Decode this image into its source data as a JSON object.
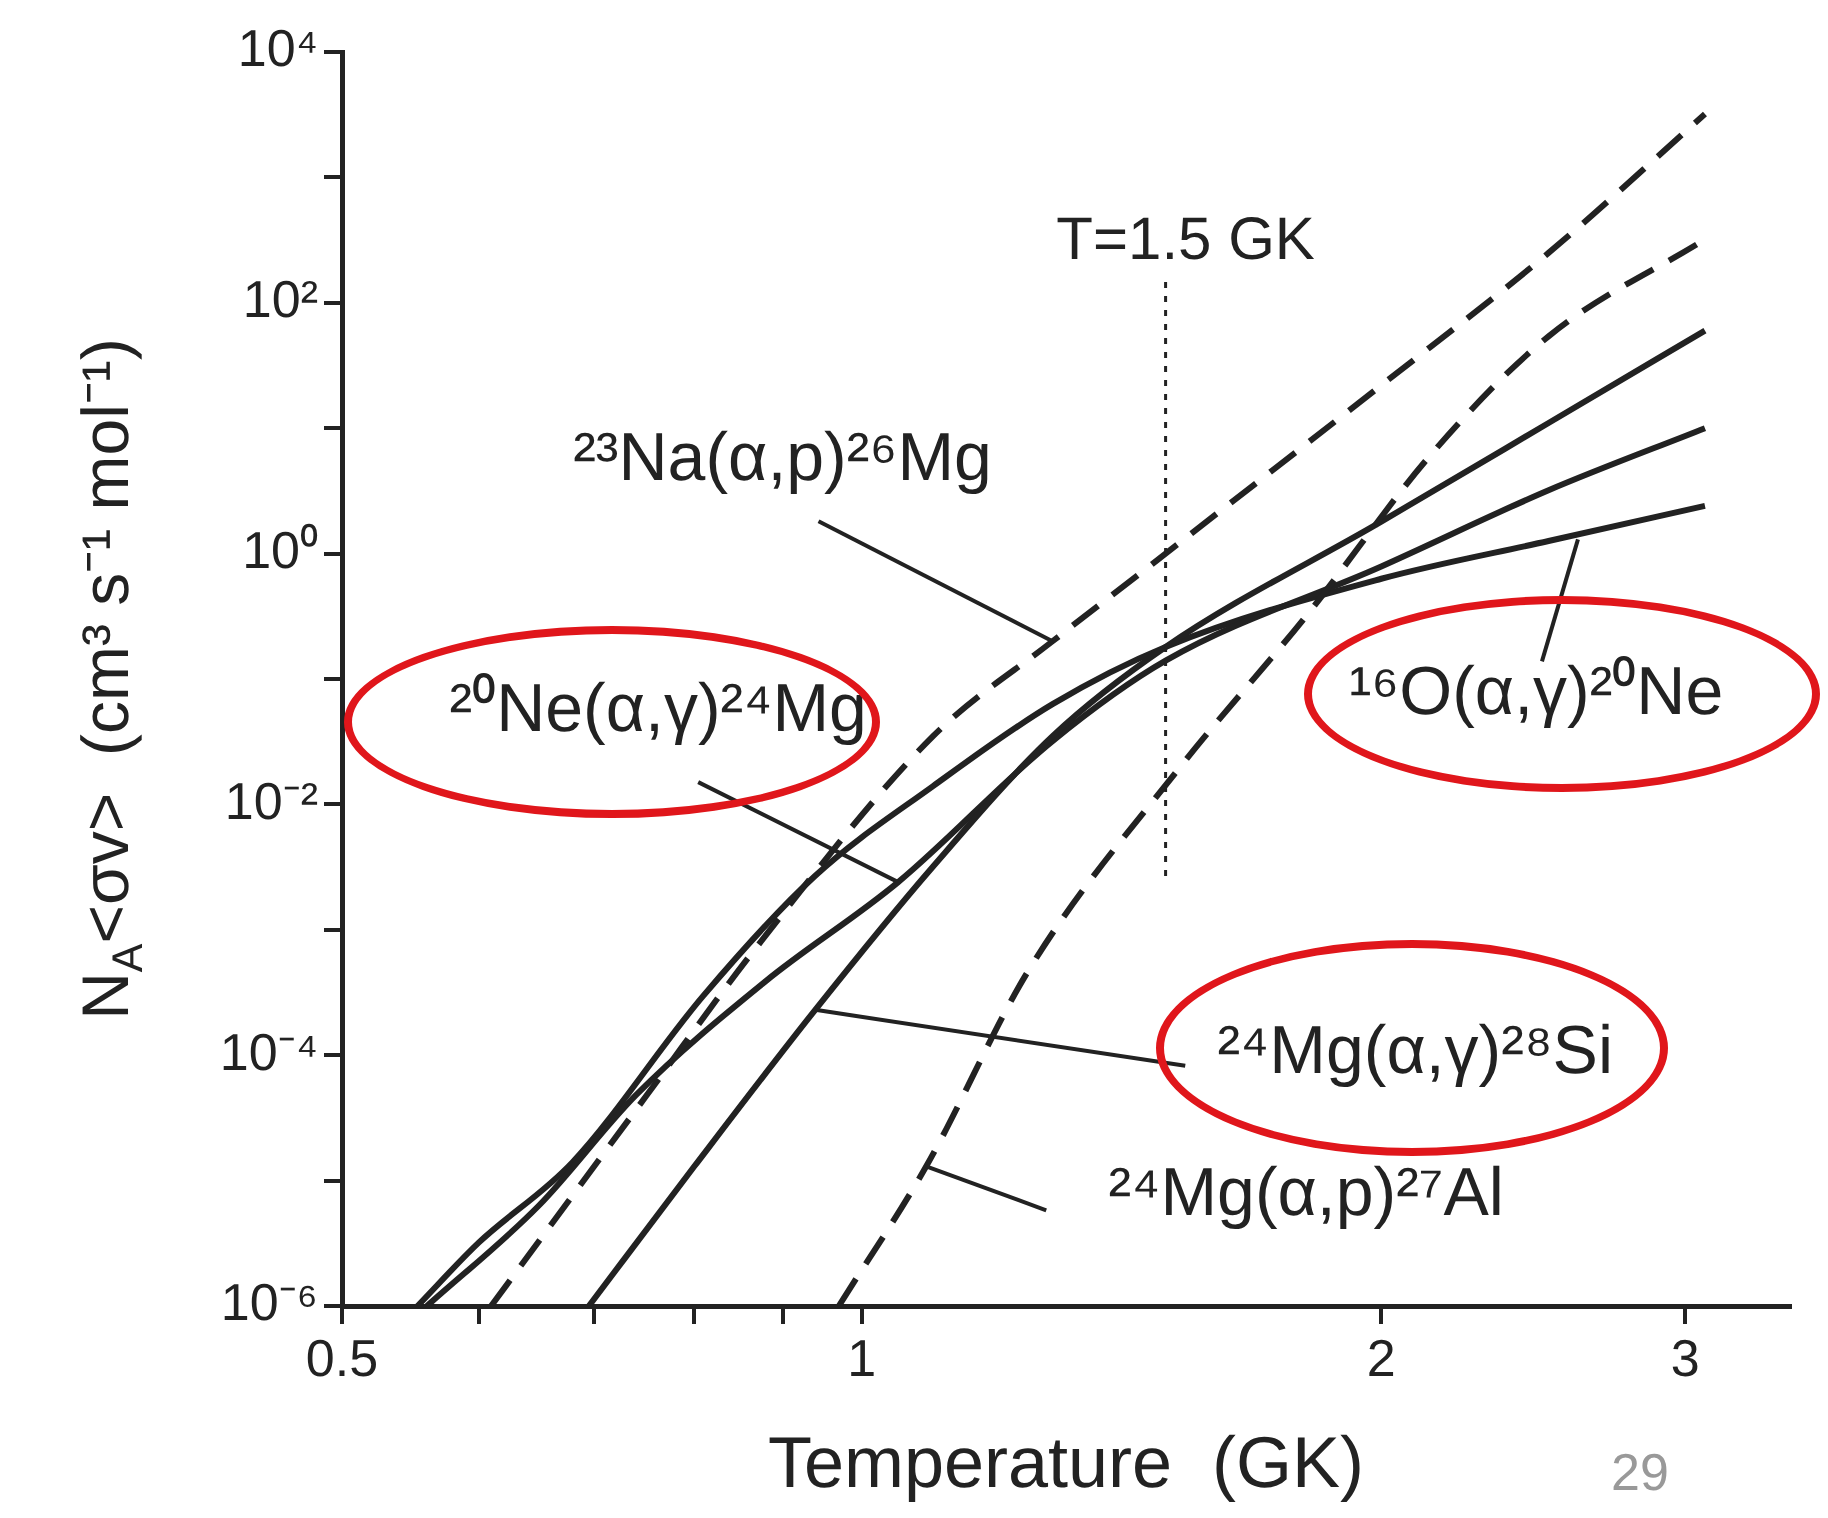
{
  "chart_data": {
    "type": "line",
    "xlabel": "Temperature  (GK)",
    "ylabel": "N$_{A}$<σv>  (cm³ s⁻¹ mol⁻¹)",
    "log": "xy",
    "grid": false,
    "legend": false,
    "marker": "none",
    "xlim": [
      0.5,
      3.45
    ],
    "ylim": [
      1e-06,
      10000
    ],
    "xticks": [
      0.5,
      {
        "value": 0.6,
        "label": null
      },
      {
        "value": 0.7,
        "label": null
      },
      {
        "value": 0.8,
        "label": null
      },
      {
        "value": 0.9,
        "label": null
      },
      1,
      2,
      3
    ],
    "yticks": [
      {
        "value": 1e-06,
        "label": "10⁻⁶"
      },
      {
        "value": 1e-05,
        "label": null
      },
      {
        "value": 0.0001,
        "label": "10⁻⁴"
      },
      {
        "value": 0.001,
        "label": null
      },
      {
        "value": 0.01,
        "label": "10⁻²"
      },
      {
        "value": 0.1,
        "label": null
      },
      {
        "value": 1,
        "label": "10⁰"
      },
      {
        "value": 10,
        "label": null
      },
      {
        "value": 100,
        "label": "10²"
      },
      {
        "value": 1000,
        "label": null
      },
      {
        "value": 10000,
        "label": "10⁴"
      }
    ],
    "series": [
      {
        "color": "#222222",
        "line_style": "dashed",
        "x": [
          0.61,
          0.75,
          0.87,
          1.1,
          1.29,
          1.5,
          2,
          2.5,
          3.08
        ],
        "values": [
          1e-06,
          4.7e-05,
          0.00074,
          0.035,
          0.2,
          1,
          22,
          250,
          3200
        ]
      },
      {
        "color": "#222222",
        "line_style": "dashed",
        "x": [
          0.97,
          1.09,
          1.25,
          1.53,
          1.81,
          2.14,
          2.5,
          3.08
        ],
        "values": [
          1e-06,
          1.3e-05,
          0.00048,
          0.02,
          0.32,
          6.3,
          54,
          320
        ]
      },
      {
        "color": "#222222",
        "line_style": "solid",
        "x": [
          0.695,
          0.8,
          0.94,
          1.1,
          1.29,
          1.5,
          2,
          2.5,
          3.08
        ],
        "values": [
          1e-06,
          1.3e-05,
          0.00023,
          0.0032,
          0.035,
          0.18,
          1.8,
          11,
          60
        ]
      },
      {
        "color": "#222222",
        "line_style": "solid",
        "x": [
          0.56,
          0.65,
          0.74,
          0.88,
          1.05,
          1.29,
          1.5,
          2,
          2.5,
          3.08
        ],
        "values": [
          1e-06,
          6.3e-06,
          4.8e-05,
          0.00039,
          0.0024,
          0.032,
          0.14,
          0.79,
          3.2,
          10
        ]
      },
      {
        "color": "#222222",
        "line_style": "solid",
        "x": [
          0.553,
          0.6,
          0.68,
          0.81,
          0.94,
          1.1,
          1.29,
          1.5,
          2,
          2.5,
          3.08
        ],
        "values": [
          1e-06,
          3.2e-06,
          1.4e-05,
          0.0003,
          0.0027,
          0.014,
          0.063,
          0.18,
          0.63,
          1.26,
          2.4
        ]
      }
    ],
    "ref_lines": [
      {
        "axis": "x",
        "value": 1.5,
        "label": "T=1.5 GK",
        "line_style": "dotted"
      }
    ],
    "annotations": [
      {
        "text": "²³Na(α,p)²⁶Mg",
        "x": 1.29,
        "y": 0.2
      },
      {
        "text": "²⁰Ne(α,γ)²⁴Mg",
        "x": 1.05,
        "y": 0.0024
      },
      {
        "text": "¹⁶O(α,γ)²⁰Ne",
        "x": 2.6,
        "y": 1.3
      },
      {
        "text": "²⁴Mg(α,γ)²⁸Si",
        "x": 0.94,
        "y": 0.00023
      },
      {
        "text": "²⁴Mg(α,p)²⁷Al",
        "x": 1.09,
        "y": 1.3e-05
      },
      "29"
    ]
  }
}
